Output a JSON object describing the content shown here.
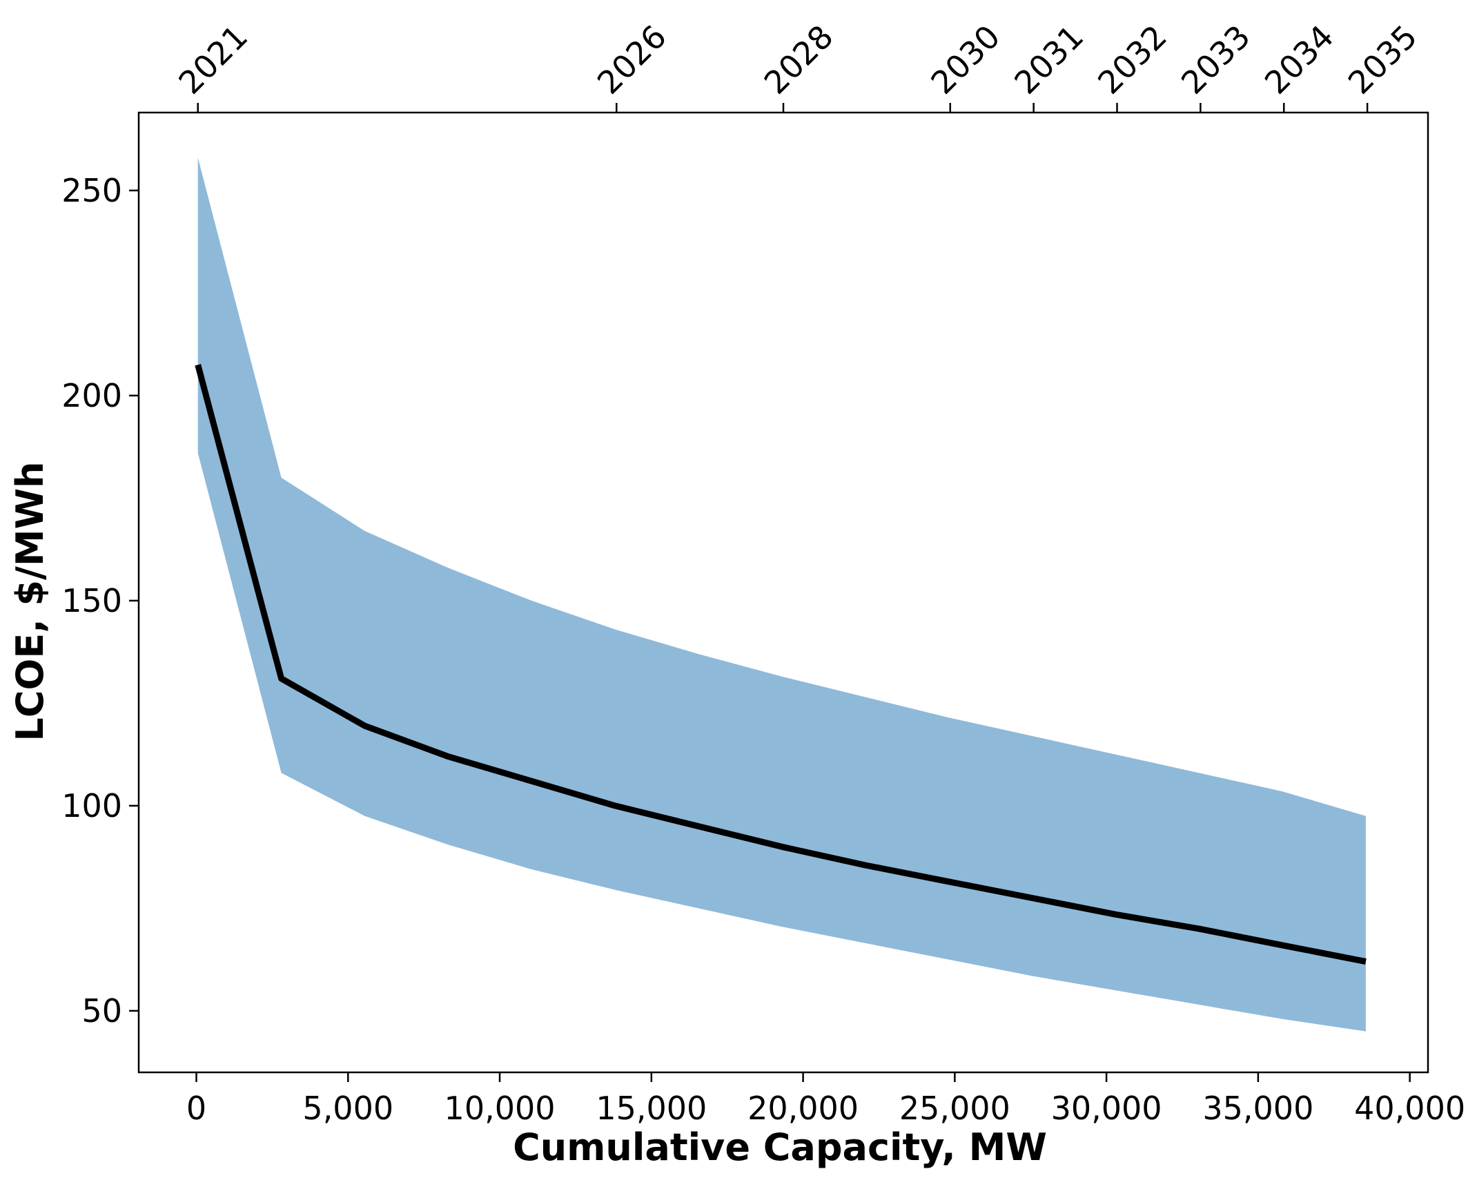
{
  "chart_data": {
    "type": "area",
    "xlabel": "Cumulative Capacity, MW",
    "ylabel": "LCOE, $/MWh",
    "xlim": [
      -1900,
      40600
    ],
    "ylim": [
      35,
      269
    ],
    "x_ticks": [
      0,
      5000,
      10000,
      15000,
      20000,
      25000,
      30000,
      35000,
      40000
    ],
    "x_tick_labels": [
      "0",
      "5,000",
      "10,000",
      "15,000",
      "20,000",
      "25,000",
      "30,000",
      "35,000",
      "40,000"
    ],
    "y_ticks": [
      50,
      100,
      150,
      200,
      250
    ],
    "y_tick_labels": [
      "50",
      "100",
      "150",
      "200",
      "250"
    ],
    "top_axis": {
      "ticks": [
        50,
        13850,
        19350,
        24850,
        27600,
        30350,
        33100,
        35850,
        38600
      ],
      "labels": [
        "2021",
        "2026",
        "2028",
        "2030",
        "2031",
        "2032",
        "2033",
        "2034",
        "2035"
      ]
    },
    "grid": false,
    "colors": {
      "band": "#8fb9d9",
      "line": "#000000",
      "axes": "#000000"
    },
    "x": [
      50,
      2800,
      5550,
      8300,
      11050,
      13800,
      16550,
      19300,
      22050,
      24800,
      27550,
      30300,
      33050,
      35800,
      38550
    ],
    "series": [
      {
        "role": "band_upper",
        "values": [
          258,
          180,
          167,
          158,
          150,
          143,
          137,
          131.5,
          126.5,
          121.5,
          117,
          112.5,
          108,
          103.5,
          97.5
        ]
      },
      {
        "role": "band_lower",
        "values": [
          186,
          108,
          97.5,
          90.5,
          84.5,
          79.5,
          75,
          70.5,
          66.5,
          62.5,
          58.5,
          55,
          51.5,
          48,
          45
        ]
      },
      {
        "role": "median",
        "values": [
          207.5,
          131,
          119.5,
          112,
          106,
          100,
          95,
          90,
          85.5,
          81.5,
          77.5,
          73.5,
          70,
          66,
          62
        ]
      }
    ]
  }
}
